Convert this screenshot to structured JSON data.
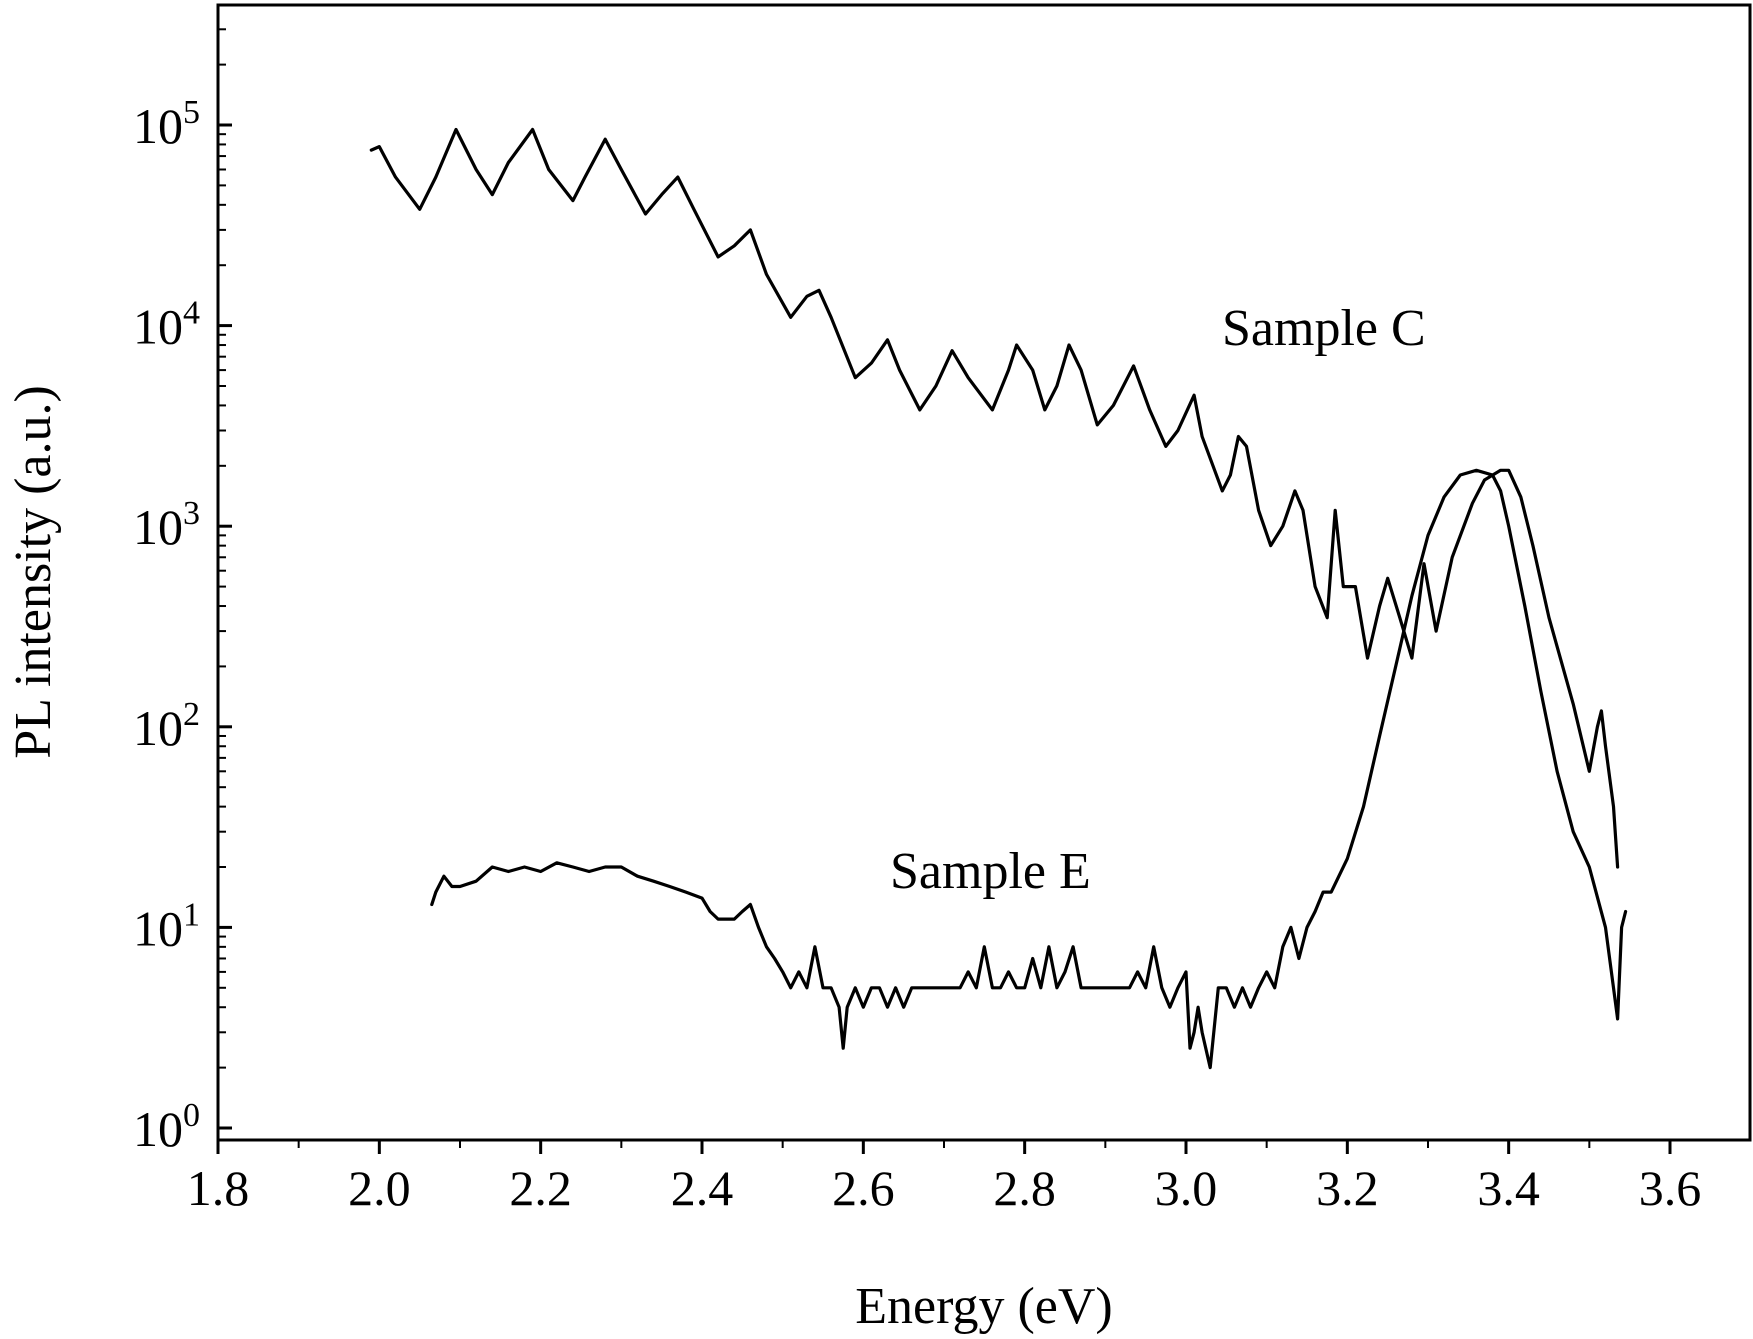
{
  "chart_data": {
    "type": "line",
    "xlabel": "Energy (eV)",
    "ylabel": "PL intensity (a.u.)",
    "xlim": [
      1.8,
      3.7
    ],
    "ylim": [
      0.8,
      500000
    ],
    "yscale": "log",
    "grid": false,
    "x_ticks": [
      1.8,
      2.0,
      2.2,
      2.4,
      2.6,
      2.8,
      3.0,
      3.2,
      3.4,
      3.6
    ],
    "x_tick_labels": [
      "1.8",
      "2.0",
      "2.2",
      "2.4",
      "2.6",
      "2.8",
      "3.0",
      "3.2",
      "3.4",
      "3.6"
    ],
    "y_ticks": [
      1,
      10,
      100,
      1000,
      10000,
      100000
    ],
    "y_tick_labels": [
      {
        "base": "10",
        "exp": "0"
      },
      {
        "base": "10",
        "exp": "1"
      },
      {
        "base": "10",
        "exp": "2"
      },
      {
        "base": "10",
        "exp": "3"
      },
      {
        "base": "10",
        "exp": "4"
      },
      {
        "base": "10",
        "exp": "5"
      }
    ],
    "annotations": [
      {
        "text": "Sample C",
        "series": 0
      },
      {
        "text": "Sample E",
        "series": 1
      }
    ],
    "series": [
      {
        "name": "Sample C",
        "color": "#000000",
        "x": [
          1.99,
          2.0,
          2.02,
          2.05,
          2.07,
          2.095,
          2.12,
          2.14,
          2.16,
          2.19,
          2.21,
          2.24,
          2.255,
          2.28,
          2.3,
          2.33,
          2.35,
          2.37,
          2.39,
          2.42,
          2.44,
          2.46,
          2.48,
          2.51,
          2.53,
          2.545,
          2.56,
          2.59,
          2.61,
          2.63,
          2.645,
          2.67,
          2.69,
          2.71,
          2.73,
          2.76,
          2.78,
          2.79,
          2.81,
          2.825,
          2.84,
          2.855,
          2.87,
          2.89,
          2.91,
          2.935,
          2.955,
          2.975,
          2.99,
          3.01,
          3.02,
          3.045,
          3.055,
          3.065,
          3.075,
          3.09,
          3.105,
          3.12,
          3.135,
          3.145,
          3.16,
          3.175,
          3.185,
          3.195,
          3.21,
          3.225,
          3.24,
          3.25,
          3.265,
          3.28,
          3.295,
          3.31,
          3.33,
          3.355,
          3.37,
          3.39,
          3.4,
          3.415,
          3.43,
          3.45,
          3.48,
          3.5,
          3.51,
          3.515,
          3.52,
          3.53,
          3.535
        ],
        "y": [
          75000,
          78000,
          55000,
          38000,
          55000,
          95000,
          60000,
          45000,
          65000,
          95000,
          60000,
          42000,
          55000,
          85000,
          60000,
          36000,
          45000,
          55000,
          38000,
          22000,
          25000,
          30000,
          18000,
          11000,
          14000,
          15000,
          11000,
          5500,
          6500,
          8500,
          6000,
          3800,
          5000,
          7500,
          5500,
          3800,
          6000,
          8000,
          6000,
          3800,
          5000,
          8000,
          6000,
          3200,
          4000,
          6300,
          3800,
          2500,
          3000,
          4500,
          2800,
          1500,
          1800,
          2800,
          2500,
          1200,
          800,
          1000,
          1500,
          1200,
          500,
          350,
          1200,
          500,
          500,
          220,
          400,
          550,
          350,
          220,
          650,
          300,
          700,
          1300,
          1700,
          1900,
          1900,
          1400,
          800,
          350,
          130,
          60,
          100,
          120,
          80,
          40,
          20
        ]
      },
      {
        "name": "Sample E",
        "color": "#000000",
        "x": [
          2.065,
          2.07,
          2.08,
          2.09,
          2.1,
          2.12,
          2.14,
          2.16,
          2.18,
          2.2,
          2.22,
          2.24,
          2.26,
          2.28,
          2.3,
          2.32,
          2.34,
          2.36,
          2.38,
          2.4,
          2.41,
          2.42,
          2.44,
          2.45,
          2.46,
          2.47,
          2.48,
          2.49,
          2.5,
          2.51,
          2.52,
          2.53,
          2.54,
          2.55,
          2.56,
          2.57,
          2.575,
          2.58,
          2.59,
          2.6,
          2.61,
          2.62,
          2.63,
          2.64,
          2.65,
          2.66,
          2.67,
          2.68,
          2.69,
          2.7,
          2.71,
          2.72,
          2.73,
          2.74,
          2.75,
          2.76,
          2.77,
          2.78,
          2.79,
          2.8,
          2.81,
          2.82,
          2.83,
          2.84,
          2.85,
          2.86,
          2.87,
          2.88,
          2.89,
          2.9,
          2.91,
          2.92,
          2.93,
          2.94,
          2.95,
          2.96,
          2.97,
          2.98,
          2.99,
          3.0,
          3.005,
          3.01,
          3.015,
          3.02,
          3.03,
          3.04,
          3.05,
          3.06,
          3.07,
          3.08,
          3.09,
          3.1,
          3.11,
          3.12,
          3.13,
          3.14,
          3.15,
          3.16,
          3.17,
          3.18,
          3.2,
          3.22,
          3.24,
          3.26,
          3.28,
          3.3,
          3.32,
          3.34,
          3.36,
          3.38,
          3.39,
          3.4,
          3.42,
          3.44,
          3.46,
          3.48,
          3.5,
          3.52,
          3.53,
          3.535,
          3.54,
          3.545
        ],
        "y": [
          13,
          15,
          18,
          16,
          16,
          17,
          20,
          19,
          20,
          19,
          21,
          20,
          19,
          20,
          20,
          18,
          17,
          16,
          15,
          14,
          12,
          11,
          11,
          12,
          13,
          10,
          8,
          7,
          6,
          5,
          6,
          5,
          8,
          5,
          5,
          4,
          2.5,
          4,
          5,
          4,
          5,
          5,
          4,
          5,
          4,
          5,
          5,
          5,
          5,
          5,
          5,
          5,
          6,
          5,
          8,
          5,
          5,
          6,
          5,
          5,
          7,
          5,
          8,
          5,
          6,
          8,
          5,
          5,
          5,
          5,
          5,
          5,
          5,
          6,
          5,
          8,
          5,
          4,
          5,
          6,
          2.5,
          3,
          4,
          3,
          2,
          5,
          5,
          4,
          5,
          4,
          5,
          6,
          5,
          8,
          10,
          7,
          10,
          12,
          15,
          15,
          22,
          40,
          90,
          200,
          450,
          900,
          1400,
          1800,
          1900,
          1800,
          1500,
          1000,
          400,
          150,
          60,
          30,
          20,
          10,
          5,
          3.5,
          10,
          12
        ]
      }
    ]
  }
}
